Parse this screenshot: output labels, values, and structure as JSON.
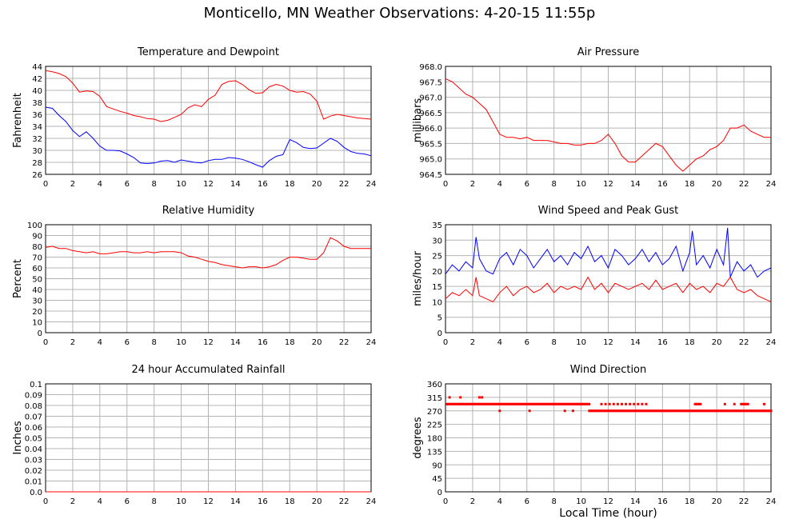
{
  "page_title": "Monticello, MN Weather Observations: 4-20-15 11:55p",
  "x_axis_title": "Local Time (hour)",
  "colors": {
    "red": "#ff0000",
    "blue": "#0000ff",
    "grid": "#b4b4b4"
  },
  "chart_data": [
    {
      "id": "temp",
      "type": "line",
      "title": "Temperature and Dewpoint",
      "ylabel": "Fahrenheit",
      "xlim": [
        0,
        24
      ],
      "ylim": [
        26,
        44
      ],
      "x_ticks": [
        0,
        2,
        4,
        6,
        8,
        10,
        12,
        14,
        16,
        18,
        20,
        22,
        24
      ],
      "y_ticks": [
        26,
        28,
        30,
        32,
        34,
        36,
        38,
        40,
        42,
        44
      ],
      "series": [
        {
          "color": "#ff0000",
          "x": [
            0,
            0.5,
            1,
            1.5,
            2,
            2.5,
            3,
            3.5,
            4,
            4.5,
            5,
            5.5,
            6,
            6.5,
            7,
            7.5,
            8,
            8.5,
            9,
            9.5,
            10,
            10.5,
            11,
            11.5,
            12,
            12.5,
            13,
            13.5,
            14,
            14.5,
            15,
            15.5,
            16,
            16.5,
            17,
            17.5,
            18,
            18.5,
            19,
            19.5,
            20,
            20.5,
            21,
            21.5,
            22,
            22.5,
            23,
            23.5,
            24
          ],
          "y": [
            43.3,
            43.1,
            42.8,
            42.3,
            41.2,
            39.7,
            39.9,
            39.8,
            39.0,
            37.3,
            36.9,
            36.5,
            36.2,
            35.8,
            35.6,
            35.3,
            35.2,
            34.8,
            35.0,
            35.5,
            36.0,
            37.1,
            37.6,
            37.3,
            38.5,
            39.2,
            41.0,
            41.5,
            41.6,
            41.0,
            40.1,
            39.5,
            39.6,
            40.6,
            41.0,
            40.7,
            40.0,
            39.7,
            39.8,
            39.4,
            38.2,
            35.2,
            35.7,
            36.0,
            35.8,
            35.6,
            35.4,
            35.3,
            35.2
          ]
        },
        {
          "color": "#0000ff",
          "x": [
            0,
            0.5,
            1,
            1.5,
            2,
            2.5,
            3,
            3.5,
            4,
            4.5,
            5,
            5.5,
            6,
            6.5,
            7,
            7.5,
            8,
            8.5,
            9,
            9.5,
            10,
            10.5,
            11,
            11.5,
            12,
            12.5,
            13,
            13.5,
            14,
            14.5,
            15,
            15.5,
            16,
            16.5,
            17,
            17.5,
            18,
            18.5,
            19,
            19.5,
            20,
            20.5,
            21,
            21.5,
            22,
            22.5,
            23,
            23.5,
            24
          ],
          "y": [
            37.2,
            37.0,
            35.8,
            34.8,
            33.3,
            32.3,
            33.1,
            32.0,
            30.7,
            30.0,
            30.0,
            29.9,
            29.4,
            28.8,
            27.9,
            27.8,
            27.9,
            28.2,
            28.3,
            28.0,
            28.4,
            28.2,
            28.0,
            27.9,
            28.3,
            28.5,
            28.5,
            28.8,
            28.7,
            28.5,
            28.1,
            27.6,
            27.2,
            28.3,
            29.0,
            29.3,
            31.8,
            31.3,
            30.5,
            30.3,
            30.4,
            31.2,
            32.0,
            31.5,
            30.5,
            29.8,
            29.5,
            29.4,
            29.1
          ]
        }
      ]
    },
    {
      "id": "pressure",
      "type": "line",
      "title": "Air Pressure",
      "ylabel": "millibars",
      "xlim": [
        0,
        24
      ],
      "ylim": [
        964.5,
        968.0
      ],
      "x_ticks": [
        0,
        2,
        4,
        6,
        8,
        10,
        12,
        14,
        16,
        18,
        20,
        22,
        24
      ],
      "y_ticks": [
        964.5,
        965.0,
        965.5,
        966.0,
        966.5,
        967.0,
        967.5,
        968.0
      ],
      "y_tick_labels": [
        "964.5",
        "965.0",
        "965.5",
        "966.0",
        "966.5",
        "967.0",
        "967.5",
        "968.0"
      ],
      "series": [
        {
          "color": "#ff0000",
          "x": [
            0,
            0.5,
            1,
            1.5,
            2,
            2.5,
            3,
            3.5,
            4,
            4.5,
            5,
            5.5,
            6,
            6.5,
            7,
            7.5,
            8,
            8.5,
            9,
            9.5,
            10,
            10.5,
            11,
            11.5,
            12,
            12.5,
            13,
            13.5,
            14,
            14.5,
            15,
            15.5,
            16,
            16.5,
            17,
            17.5,
            18,
            18.5,
            19,
            19.5,
            20,
            20.5,
            21,
            21.5,
            22,
            22.5,
            23,
            23.5,
            24
          ],
          "y": [
            967.6,
            967.5,
            967.3,
            967.1,
            967.0,
            966.8,
            966.6,
            966.2,
            965.8,
            965.7,
            965.7,
            965.65,
            965.7,
            965.6,
            965.6,
            965.6,
            965.55,
            965.5,
            965.5,
            965.45,
            965.45,
            965.5,
            965.5,
            965.6,
            965.8,
            965.5,
            965.1,
            964.9,
            964.9,
            965.1,
            965.3,
            965.5,
            965.4,
            965.1,
            964.8,
            964.6,
            964.8,
            965.0,
            965.1,
            965.3,
            965.4,
            965.6,
            966.0,
            966.0,
            966.1,
            965.9,
            965.8,
            965.7,
            965.7
          ]
        }
      ]
    },
    {
      "id": "humidity",
      "type": "line",
      "title": "Relative Humidity",
      "ylabel": "Percent",
      "xlim": [
        0,
        24
      ],
      "ylim": [
        0,
        100
      ],
      "x_ticks": [
        0,
        2,
        4,
        6,
        8,
        10,
        12,
        14,
        16,
        18,
        20,
        22,
        24
      ],
      "y_ticks": [
        0,
        10,
        20,
        30,
        40,
        50,
        60,
        70,
        80,
        90,
        100
      ],
      "series": [
        {
          "color": "#ff0000",
          "x": [
            0,
            0.5,
            1,
            1.5,
            2,
            2.5,
            3,
            3.5,
            4,
            4.5,
            5,
            5.5,
            6,
            6.5,
            7,
            7.5,
            8,
            8.5,
            9,
            9.5,
            10,
            10.5,
            11,
            11.5,
            12,
            12.5,
            13,
            13.5,
            14,
            14.5,
            15,
            15.5,
            16,
            16.5,
            17,
            17.5,
            18,
            18.5,
            19,
            19.5,
            20,
            20.5,
            21,
            21.5,
            22,
            22.5,
            23,
            23.5,
            24
          ],
          "y": [
            79,
            80,
            78,
            78,
            76,
            75,
            74,
            75,
            73,
            73,
            74,
            75,
            75,
            74,
            74,
            75,
            74,
            75,
            75,
            75,
            74,
            71,
            70,
            68,
            66,
            65,
            63,
            62,
            61,
            60,
            61,
            61,
            60,
            61,
            63,
            67,
            70,
            70,
            69,
            68,
            68,
            74,
            88,
            85,
            80,
            78,
            78,
            78,
            78
          ]
        }
      ]
    },
    {
      "id": "wind-speed",
      "type": "line",
      "title": "Wind Speed and Peak Gust",
      "ylabel": "miles/hour",
      "xlim": [
        0,
        24
      ],
      "ylim": [
        0,
        35
      ],
      "x_ticks": [
        0,
        2,
        4,
        6,
        8,
        10,
        12,
        14,
        16,
        18,
        20,
        22,
        24
      ],
      "y_ticks": [
        0,
        5,
        10,
        15,
        20,
        25,
        30,
        35
      ],
      "series": [
        {
          "color": "#0000ff",
          "x": [
            0,
            0.5,
            1,
            1.5,
            2,
            2.25,
            2.5,
            3,
            3.5,
            4,
            4.5,
            5,
            5.5,
            6,
            6.5,
            7,
            7.5,
            8,
            8.5,
            9,
            9.5,
            10,
            10.5,
            11,
            11.5,
            12,
            12.5,
            13,
            13.5,
            14,
            14.5,
            15,
            15.5,
            16,
            16.5,
            17,
            17.5,
            18,
            18.2,
            18.5,
            19,
            19.5,
            20,
            20.5,
            20.8,
            21,
            21.5,
            22,
            22.5,
            23,
            23.5,
            24
          ],
          "y": [
            19,
            22,
            20,
            23,
            21,
            31,
            24,
            20,
            19,
            24,
            26,
            22,
            27,
            25,
            21,
            24,
            27,
            23,
            25,
            22,
            26,
            24,
            28,
            23,
            25,
            21,
            27,
            25,
            22,
            24,
            27,
            23,
            26,
            22,
            24,
            28,
            20,
            26,
            33,
            22,
            25,
            21,
            27,
            22,
            34,
            18,
            23,
            20,
            22,
            18,
            20,
            21
          ]
        },
        {
          "color": "#ff0000",
          "x": [
            0,
            0.5,
            1,
            1.5,
            2,
            2.25,
            2.5,
            3,
            3.5,
            4,
            4.5,
            5,
            5.5,
            6,
            6.5,
            7,
            7.5,
            8,
            8.5,
            9,
            9.5,
            10,
            10.5,
            11,
            11.5,
            12,
            12.5,
            13,
            13.5,
            14,
            14.5,
            15,
            15.5,
            16,
            16.5,
            17,
            17.5,
            18,
            18.5,
            19,
            19.5,
            20,
            20.5,
            21,
            21.5,
            22,
            22.5,
            23,
            23.5,
            24
          ],
          "y": [
            11,
            13,
            12,
            14,
            12,
            18,
            12,
            11,
            10,
            13,
            15,
            12,
            14,
            15,
            13,
            14,
            16,
            13,
            15,
            14,
            15,
            14,
            18,
            14,
            16,
            13,
            16,
            15,
            14,
            15,
            16,
            14,
            17,
            14,
            15,
            16,
            13,
            16,
            14,
            15,
            13,
            16,
            15,
            18,
            14,
            13,
            14,
            12,
            11,
            10
          ]
        }
      ]
    },
    {
      "id": "rainfall",
      "type": "line",
      "title": "24 hour Accumulated Rainfall",
      "ylabel": "Inches",
      "xlim": [
        0,
        24
      ],
      "ylim": [
        0,
        0.1
      ],
      "x_ticks": [
        0,
        2,
        4,
        6,
        8,
        10,
        12,
        14,
        16,
        18,
        20,
        22,
        24
      ],
      "y_ticks": [
        0,
        0.01,
        0.02,
        0.03,
        0.04,
        0.05,
        0.06,
        0.07,
        0.08,
        0.09,
        0.1
      ],
      "y_tick_labels": [
        "0.0",
        "0.01",
        "0.02",
        "0.03",
        "0.04",
        "0.05",
        "0.06",
        "0.07",
        "0.08",
        "0.09",
        "0.1"
      ],
      "series": [
        {
          "color": "#ff0000",
          "x": [
            0,
            24
          ],
          "y": [
            0,
            0
          ]
        }
      ]
    },
    {
      "id": "wind-direction",
      "type": "scatter",
      "title": "Wind Direction",
      "ylabel": "degrees",
      "xlim": [
        0,
        24
      ],
      "ylim": [
        0,
        360
      ],
      "x_ticks": [
        0,
        2,
        4,
        6,
        8,
        10,
        12,
        14,
        16,
        18,
        20,
        22,
        24
      ],
      "y_ticks": [
        0,
        45,
        90,
        135,
        180,
        225,
        270,
        315,
        360
      ],
      "series": [
        {
          "color": "#ff0000",
          "segments": [
            {
              "from": 0.1,
              "to": 10.6,
              "y": 292.5
            },
            {
              "from": 10.6,
              "to": 24.0,
              "y": 270
            },
            {
              "from": 11.5,
              "to": 15.0,
              "y": 292.5,
              "sparse": true
            },
            {
              "from": 18.4,
              "to": 18.8,
              "y": 292.5
            },
            {
              "from": 21.8,
              "to": 22.3,
              "y": 292.5
            }
          ],
          "points": [
            {
              "x": 0.3,
              "y": 315
            },
            {
              "x": 1.1,
              "y": 315
            },
            {
              "x": 2.5,
              "y": 315
            },
            {
              "x": 2.7,
              "y": 315
            },
            {
              "x": 4.0,
              "y": 270
            },
            {
              "x": 6.2,
              "y": 270
            },
            {
              "x": 8.8,
              "y": 270
            },
            {
              "x": 9.4,
              "y": 270
            },
            {
              "x": 20.6,
              "y": 292.5
            },
            {
              "x": 21.3,
              "y": 292.5
            },
            {
              "x": 23.5,
              "y": 292.5
            }
          ]
        }
      ]
    }
  ]
}
